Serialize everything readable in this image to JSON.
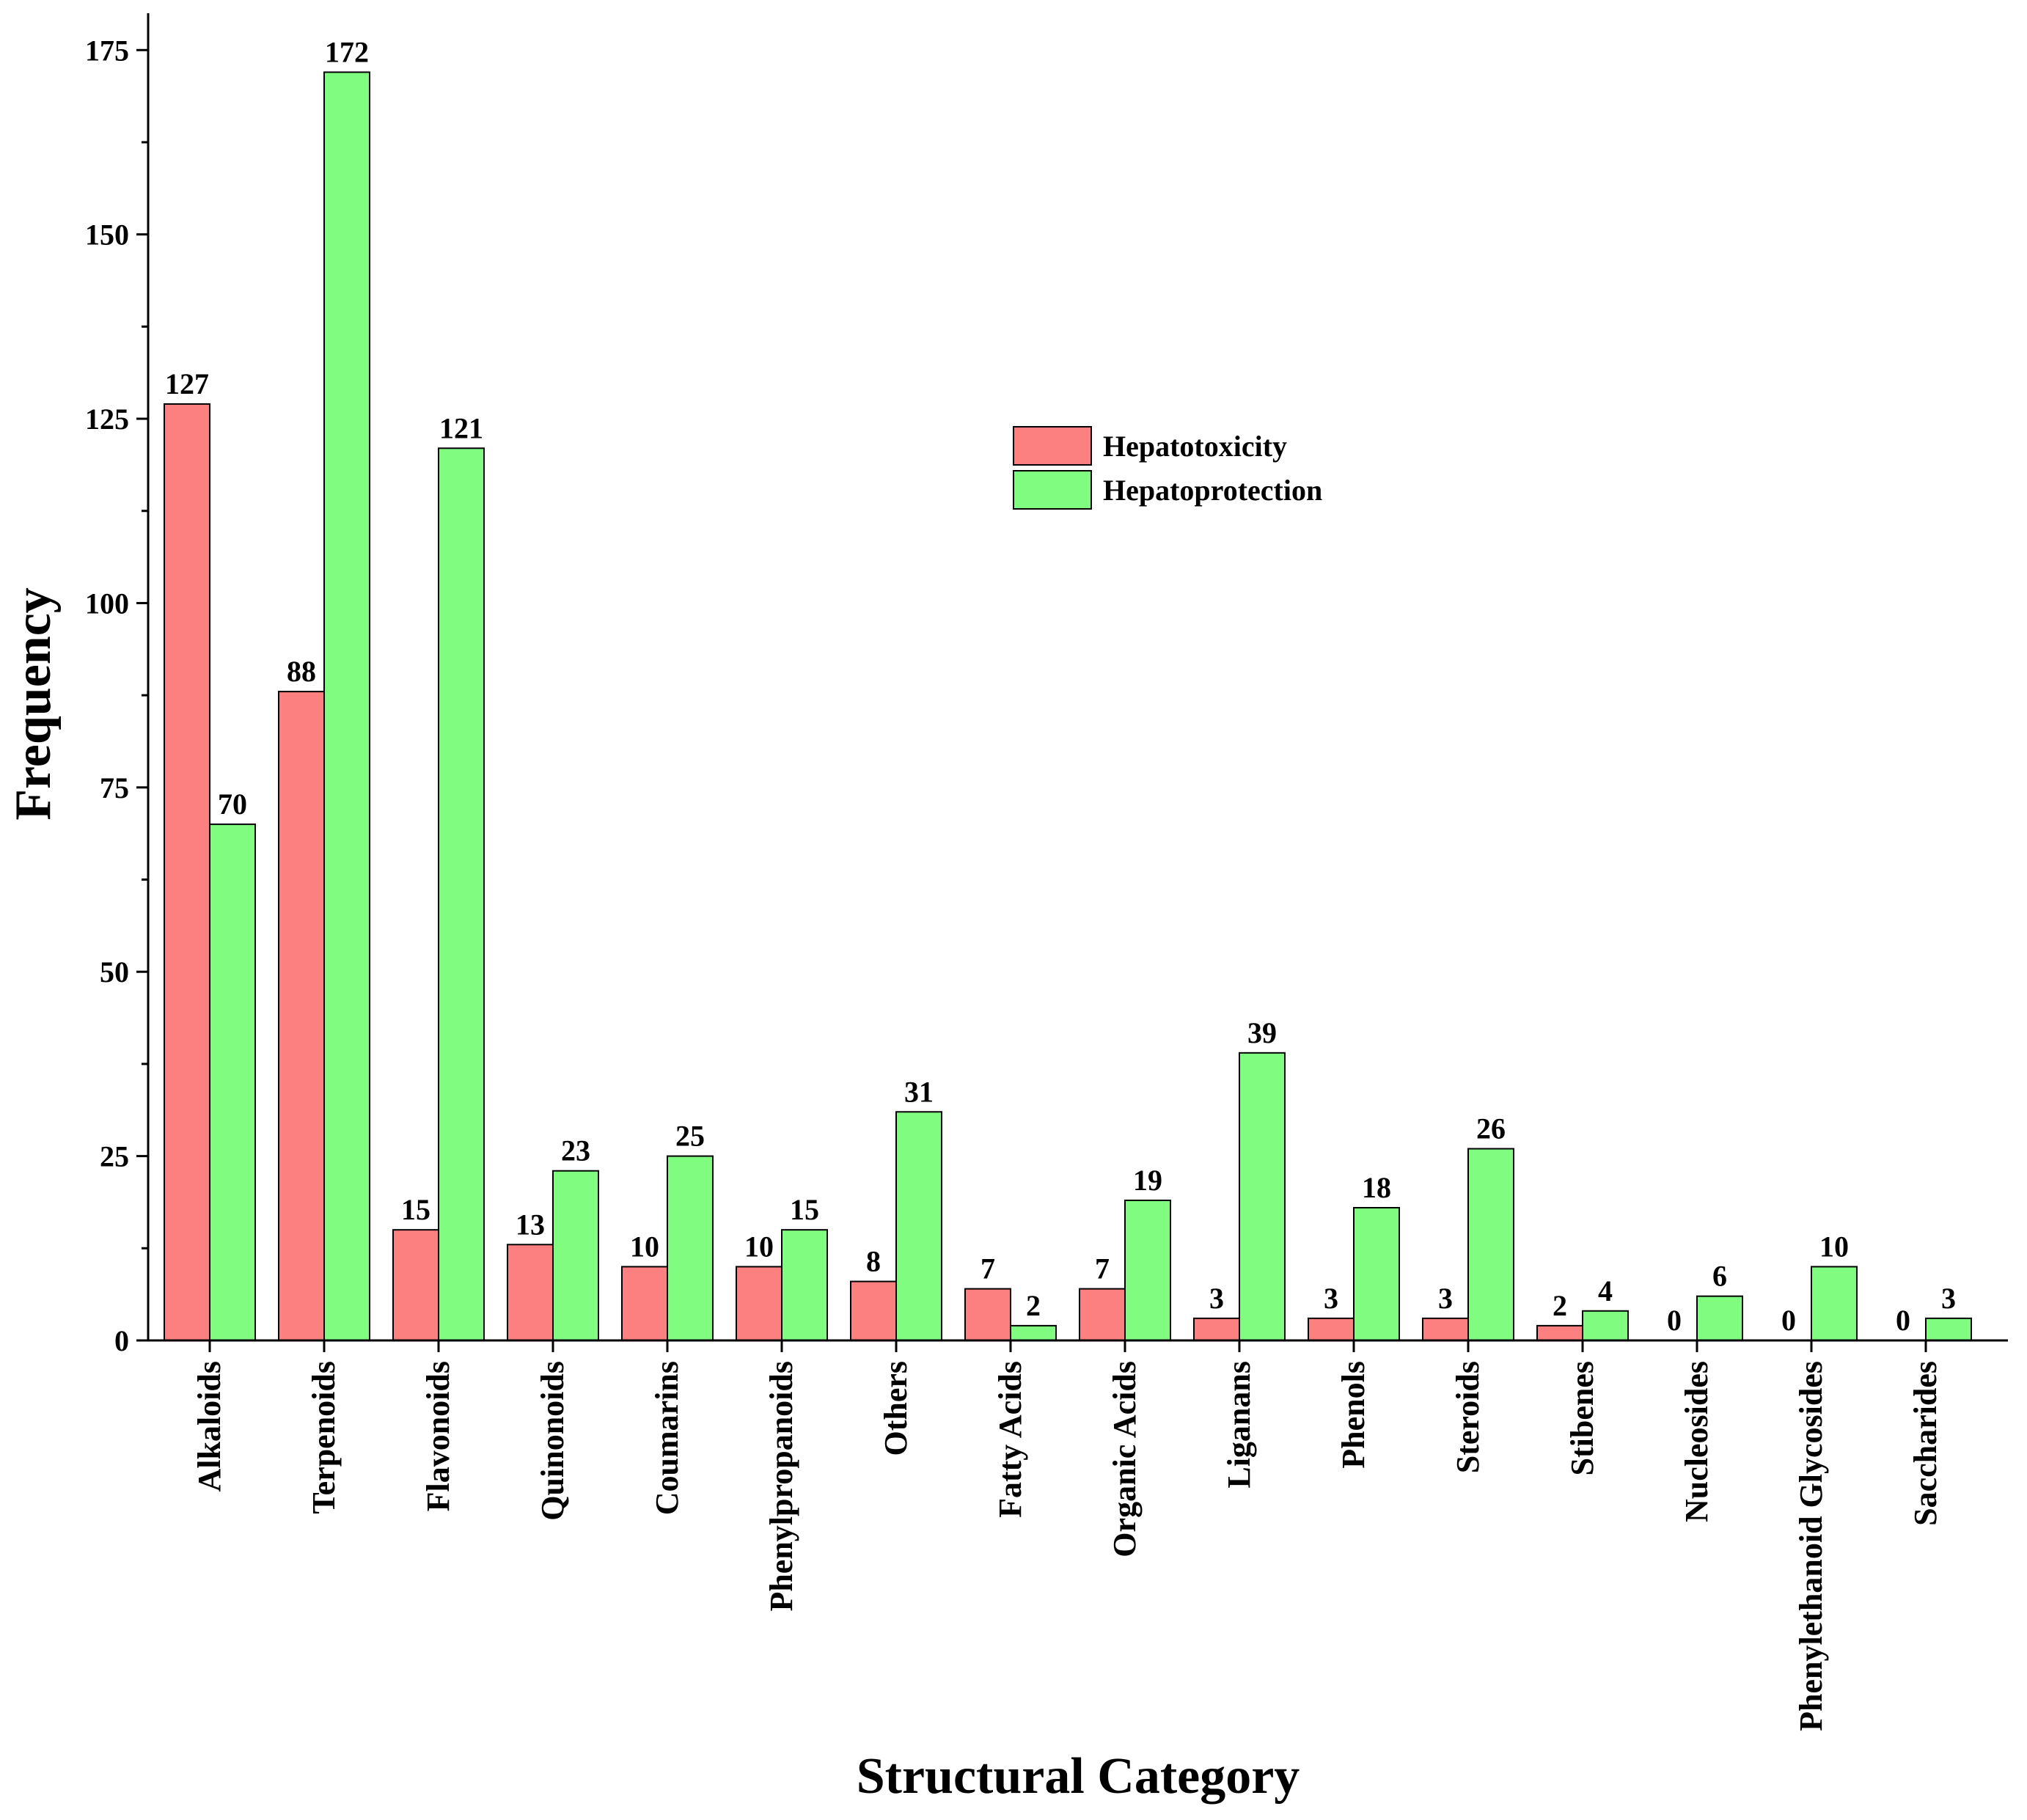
{
  "chart_data": {
    "type": "bar",
    "title": "",
    "xlabel": "Structural Category",
    "ylabel": "Frequency",
    "ylim": [
      0,
      180
    ],
    "yticks": [
      "0",
      "25",
      "50",
      "75",
      "100",
      "125",
      "150",
      "175"
    ],
    "legend_position": "upper-middle-right",
    "categories": [
      "Alkaloids",
      "Terpenoids",
      "Flavonoids",
      "Quinonoids",
      "Coumarins",
      "Phenylpropanoids",
      "Others",
      "Fatty Acids",
      "Organic Acids",
      "Liganans",
      "Phenols",
      "Steroids",
      "Stibenes",
      "Nucleosides",
      "Phenylethanoid Glycosides",
      "Saccharides"
    ],
    "series": [
      {
        "name": "Hepatotoxicity",
        "color": "#fd8080",
        "values": [
          127,
          88,
          15,
          13,
          10,
          10,
          8,
          7,
          7,
          3,
          3,
          3,
          2,
          0,
          0,
          0
        ]
      },
      {
        "name": "Hepatoprotection",
        "color": "#80fd80",
        "values": [
          70,
          172,
          121,
          23,
          25,
          15,
          31,
          2,
          19,
          39,
          18,
          26,
          4,
          6,
          10,
          3
        ]
      }
    ]
  }
}
